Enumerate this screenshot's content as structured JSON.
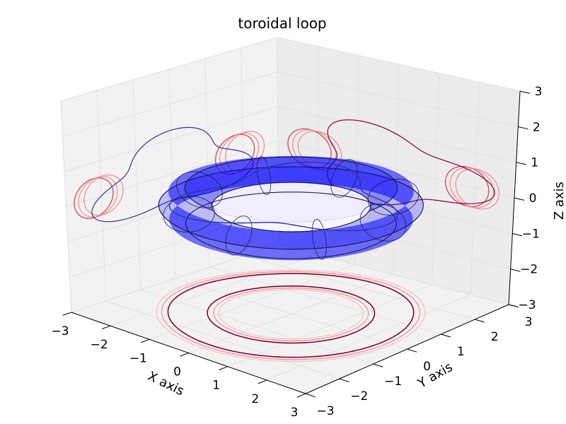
{
  "chart_data": {
    "type": "surface3d",
    "title": "toroidal loop",
    "xlabel": "X axis",
    "ylabel": "Y axis",
    "zlabel": "Z axis",
    "xlim": [
      -3,
      3
    ],
    "ylim": [
      -3,
      3
    ],
    "zlim": [
      -3,
      3
    ],
    "xticks": [
      "−3",
      "−2",
      "−1",
      "0",
      "1",
      "2",
      "3"
    ],
    "yticks": [
      "−3",
      "−2",
      "−1",
      "0",
      "1",
      "2",
      "3"
    ],
    "zticks": [
      "−3",
      "−2",
      "−1",
      "0",
      "1",
      "2",
      "3"
    ],
    "grid": true,
    "torus": {
      "major_radius": 2.0,
      "minor_radius": 0.5,
      "z_center": 0.0,
      "color": "#0000ff"
    },
    "loop": {
      "radius": 2.0,
      "wave_amplitude": 0.5,
      "wave_periods": 3,
      "color": "#333399"
    },
    "projection_colors": [
      "#8b0033",
      "#cc3344",
      "#ee8888",
      "#f5c0c0"
    ],
    "pane_color": "#f2f2f2"
  }
}
